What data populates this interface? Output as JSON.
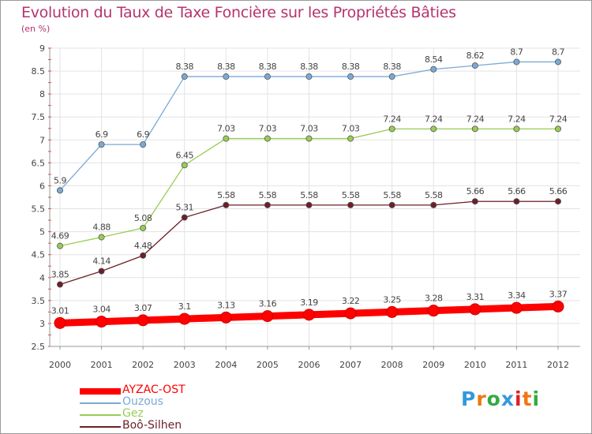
{
  "chart_data": {
    "type": "line",
    "title": "Evolution du Taux de Taxe Foncière sur les Propriétés Bâties",
    "subtitle": "(en %)",
    "x": [
      "2000",
      "2001",
      "2002",
      "2003",
      "2004",
      "2005",
      "2006",
      "2007",
      "2008",
      "2009",
      "2010",
      "2011",
      "2012"
    ],
    "ylim": [
      2.5,
      9
    ],
    "yticks": [
      "2.5",
      "3",
      "3.5",
      "4",
      "4.5",
      "5",
      "5.5",
      "6",
      "6.5",
      "7",
      "7.5",
      "8",
      "8.5",
      "9"
    ],
    "grid": true,
    "series": [
      {
        "name": "AYZAC-OST",
        "color": "#ff0000",
        "values": [
          3.01,
          3.04,
          3.07,
          3.1,
          3.13,
          3.16,
          3.19,
          3.22,
          3.25,
          3.28,
          3.31,
          3.34,
          3.37
        ],
        "labels": [
          "3.01",
          "3.04",
          "3.07",
          "3.1",
          "3.13",
          "3.16",
          "3.19",
          "3.22",
          "3.25",
          "3.28",
          "3.31",
          "3.34",
          "3.37"
        ]
      },
      {
        "name": "Ouzous",
        "color": "#7aaad6",
        "values": [
          5.9,
          6.9,
          6.9,
          8.38,
          8.38,
          8.38,
          8.38,
          8.38,
          8.38,
          8.54,
          8.62,
          8.7,
          8.7
        ],
        "labels": [
          "5.9",
          "6.9",
          "6.9",
          "8.38",
          "8.38",
          "8.38",
          "8.38",
          "8.38",
          "8.38",
          "8.54",
          "8.62",
          "8.7",
          "8.7"
        ]
      },
      {
        "name": "Gez",
        "color": "#99cc55",
        "values": [
          4.69,
          4.88,
          5.08,
          6.45,
          7.03,
          7.03,
          7.03,
          7.03,
          7.24,
          7.24,
          7.24,
          7.24,
          7.24
        ],
        "labels": [
          "4.69",
          "4.88",
          "5.08",
          "6.45",
          "7.03",
          "7.03",
          "7.03",
          "7.03",
          "7.24",
          "7.24",
          "7.24",
          "7.24",
          "7.24"
        ]
      },
      {
        "name": "Boô-Silhen",
        "color": "#6b1f28",
        "values": [
          3.85,
          4.14,
          4.48,
          5.31,
          5.58,
          5.58,
          5.58,
          5.58,
          5.58,
          5.58,
          5.66,
          5.66,
          5.66
        ],
        "labels": [
          "3.85",
          "4.14",
          "4.48",
          "5.31",
          "5.58",
          "5.58",
          "5.58",
          "5.58",
          "5.58",
          "5.58",
          "5.66",
          "5.66",
          "5.66"
        ]
      }
    ]
  },
  "logo": {
    "letters": [
      "P",
      "r",
      "o",
      "x",
      "i",
      "t",
      "i"
    ],
    "colors": [
      "#3399dd",
      "#ee7711",
      "#33aa44",
      "#3399dd",
      "#dd2222",
      "#ee7711",
      "#33aa44"
    ]
  }
}
